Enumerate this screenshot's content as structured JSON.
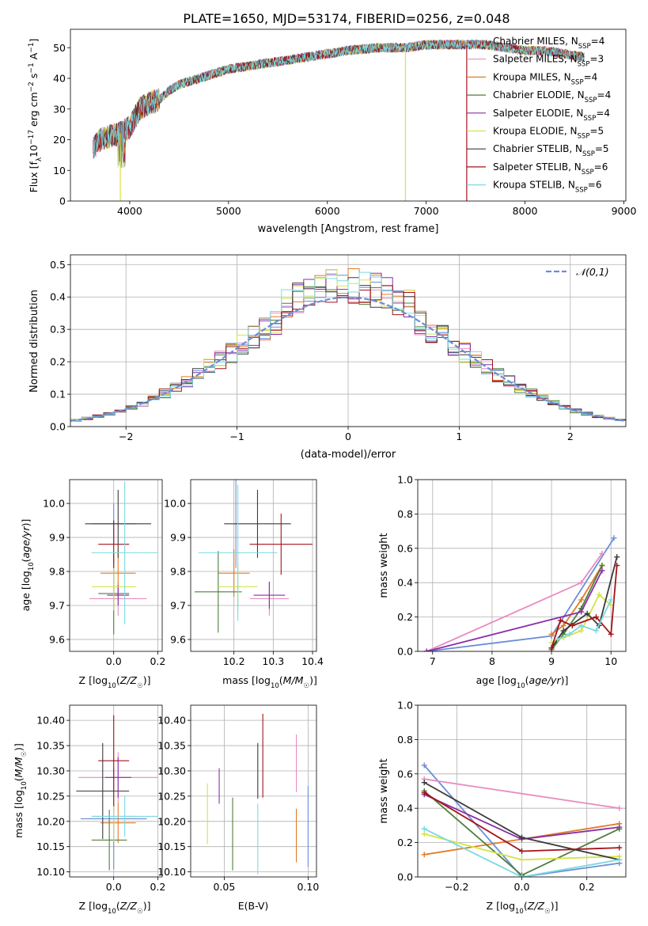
{
  "figure_title": "PLATE=1650, MJD=53174, FIBERID=0256, z=0.048",
  "colors": {
    "Chabrier MILES": "#6b8ed6",
    "Salpeter MILES": "#e98cc0",
    "Kroupa MILES": "#e07b27",
    "Chabrier ELODIE": "#4e7f3d",
    "Salpeter ELODIE": "#8a2ea8",
    "Kroupa ELODIE": "#d6e24a",
    "Chabrier STELIB": "#3b3b3b",
    "Salpeter STELIB": "#a3141b",
    "Kroupa STELIB": "#7ad9e0"
  },
  "chart_data": [
    {
      "id": "spectrum",
      "type": "line",
      "xlabel": "wavelength [Angstrom, rest frame]",
      "ylabel": "Flux [f_λ 10^-17 erg cm^-2 s^-1 A^-1]",
      "xlim": [
        3400,
        9020
      ],
      "ylim": [
        0,
        56
      ],
      "xticks": [
        4000,
        5000,
        6000,
        7000,
        8000,
        9000
      ],
      "yticks": [
        0,
        10,
        20,
        30,
        40,
        50
      ],
      "legend_position": "right",
      "legend": [
        {
          "model": "Chabrier MILES",
          "nssp": "4"
        },
        {
          "model": "Salpeter MILES",
          "nssp": "3"
        },
        {
          "model": "Kroupa MILES",
          "nssp": "4"
        },
        {
          "model": "Chabrier ELODIE",
          "nssp": "4"
        },
        {
          "model": "Salpeter ELODIE",
          "nssp": "4"
        },
        {
          "model": "Kroupa ELODIE",
          "nssp": "5"
        },
        {
          "model": "Chabrier STELIB",
          "nssp": "5"
        },
        {
          "model": "Salpeter STELIB",
          "nssp": "6"
        },
        {
          "model": "Kroupa STELIB",
          "nssp": "6"
        }
      ],
      "continuum": {
        "x": [
          3630,
          3700,
          3800,
          3900,
          4000,
          4100,
          4200,
          4300,
          4400,
          4500,
          4700,
          5000,
          5200,
          5400,
          5600,
          5800,
          6000,
          6200,
          6500,
          6800,
          7000,
          7200,
          7400,
          7600,
          7800,
          8000,
          8200,
          8400,
          8600
        ],
        "y": [
          17,
          20,
          21,
          22,
          24,
          30,
          32,
          33,
          36,
          38,
          40,
          43,
          44,
          45,
          46,
          47,
          48,
          49,
          50,
          50,
          51,
          51,
          51,
          51,
          50,
          49,
          49,
          48,
          47
        ]
      },
      "absorption_spikes": [
        {
          "x": 3905,
          "color_of": "Kroupa ELODIE"
        },
        {
          "x": 6790,
          "color_of": "Kroupa ELODIE"
        },
        {
          "x": 7410,
          "color_of": "Salpeter STELIB"
        }
      ]
    },
    {
      "id": "residuals",
      "type": "histogram",
      "xlabel": "(data-model)/error",
      "ylabel": "Normed distribution",
      "xlim": [
        -2.5,
        2.5
      ],
      "ylim": [
        0,
        0.53
      ],
      "xticks": [
        -2,
        -1,
        0,
        1,
        2
      ],
      "yticks": [
        0.0,
        0.1,
        0.2,
        0.3,
        0.4,
        0.5
      ],
      "bin_width": 0.1,
      "legend": [
        "𝒩(0,1)"
      ],
      "legend_position": "top-right",
      "grid": true
    },
    {
      "id": "z_age",
      "type": "errorbar",
      "xlabel": "Z [log10(Z/Z☉)]",
      "ylabel": "age [log10(age/yr)]",
      "xlim": [
        -0.2,
        0.22
      ],
      "ylim": [
        9.565,
        10.07
      ],
      "xticks": [
        0.0,
        0.2
      ],
      "yticks": [
        9.6,
        9.7,
        9.8,
        9.9,
        10.0
      ],
      "grid": true,
      "points": [
        {
          "model": "Chabrier MILES",
          "x": 0.0,
          "xerr": 0.1,
          "y": 9.94,
          "yerr": 0.06
        },
        {
          "model": "Salpeter MILES",
          "x": 0.02,
          "xerr": 0.13,
          "y": 9.72,
          "yerr": 0.05
        },
        {
          "model": "Kroupa MILES",
          "x": 0.02,
          "xerr": 0.08,
          "y": 9.795,
          "yerr": 0.07
        },
        {
          "model": "Chabrier ELODIE",
          "x": 0.0,
          "xerr": 0.07,
          "y": 9.735,
          "yerr": 0.12
        },
        {
          "model": "Salpeter ELODIE",
          "x": 0.02,
          "xerr": 0.05,
          "y": 9.73,
          "yerr": 0.03
        },
        {
          "model": "Kroupa ELODIE",
          "x": 0.0,
          "xerr": 0.1,
          "y": 9.755,
          "yerr": 0.07
        },
        {
          "model": "Chabrier STELIB",
          "x": 0.02,
          "xerr": 0.15,
          "y": 9.94,
          "yerr": 0.1
        },
        {
          "model": "Salpeter STELIB",
          "x": 0.0,
          "xerr": 0.07,
          "y": 9.88,
          "yerr": 0.07
        },
        {
          "model": "Kroupa STELIB",
          "x": 0.05,
          "xerr": 0.15,
          "y": 9.855,
          "yerr": 0.21
        }
      ]
    },
    {
      "id": "mass_age",
      "type": "errorbar",
      "xlabel": "mass [log10(M/M☉)]",
      "ylabel": "",
      "xlim": [
        10.09,
        10.41
      ],
      "ylim": [
        9.565,
        10.07
      ],
      "xticks": [
        10.2,
        10.3,
        10.4
      ],
      "yticks": [
        9.6,
        9.7,
        9.8,
        9.9,
        10.0
      ],
      "grid": true,
      "points": [
        {
          "model": "Chabrier MILES",
          "x": 10.205,
          "xerr": 0.005,
          "y": 9.94,
          "yerr": 0.13
        },
        {
          "model": "Salpeter MILES",
          "x": 10.29,
          "xerr": 0.05,
          "y": 9.72,
          "yerr": 0.05
        },
        {
          "model": "Kroupa MILES",
          "x": 10.2,
          "xerr": 0.04,
          "y": 9.795,
          "yerr": 0.07
        },
        {
          "model": "Chabrier ELODIE",
          "x": 10.16,
          "xerr": 0.06,
          "y": 9.74,
          "yerr": 0.12
        },
        {
          "model": "Salpeter ELODIE",
          "x": 10.29,
          "xerr": 0.04,
          "y": 9.73,
          "yerr": 0.04
        },
        {
          "model": "Kroupa ELODIE",
          "x": 10.21,
          "xerr": 0.05,
          "y": 9.755,
          "yerr": 0.07
        },
        {
          "model": "Chabrier STELIB",
          "x": 10.26,
          "xerr": 0.085,
          "y": 9.94,
          "yerr": 0.1
        },
        {
          "model": "Salpeter STELIB",
          "x": 10.32,
          "xerr": 0.08,
          "y": 9.88,
          "yerr": 0.09
        },
        {
          "model": "Kroupa STELIB",
          "x": 10.21,
          "xerr": 0.1,
          "y": 9.855,
          "yerr": 0.2
        }
      ]
    },
    {
      "id": "age_weights",
      "type": "line",
      "xlabel": "age [log10(age/yr)]",
      "ylabel": "mass weight",
      "xlim": [
        6.75,
        10.25
      ],
      "ylim": [
        0,
        1
      ],
      "xticks": [
        7,
        8,
        9,
        10
      ],
      "yticks": [
        0.0,
        0.2,
        0.4,
        0.6,
        0.8,
        1.0
      ],
      "grid": true,
      "series": [
        {
          "model": "Chabrier MILES",
          "x": [
            6.9,
            9.0,
            10.05
          ],
          "y": [
            0.0,
            0.09,
            0.66
          ]
        },
        {
          "model": "Salpeter MILES",
          "x": [
            6.9,
            9.5,
            9.85
          ],
          "y": [
            0.0,
            0.4,
            0.57
          ]
        },
        {
          "model": "Kroupa MILES",
          "x": [
            9.0,
            9.2,
            9.5,
            9.85
          ],
          "y": [
            0.1,
            0.15,
            0.3,
            0.5
          ]
        },
        {
          "model": "Chabrier ELODIE",
          "x": [
            9.0,
            9.2,
            9.5,
            9.85
          ],
          "y": [
            0.01,
            0.1,
            0.25,
            0.5
          ]
        },
        {
          "model": "Salpeter ELODIE",
          "x": [
            6.9,
            9.5,
            9.85
          ],
          "y": [
            0.0,
            0.23,
            0.47
          ]
        },
        {
          "model": "Kroupa ELODIE",
          "x": [
            9.0,
            9.2,
            9.5,
            9.8,
            10.0
          ],
          "y": [
            0.05,
            0.08,
            0.12,
            0.33,
            0.27
          ]
        },
        {
          "model": "Chabrier STELIB",
          "x": [
            9.0,
            9.2,
            9.6,
            9.8,
            10.1
          ],
          "y": [
            0.02,
            0.12,
            0.22,
            0.15,
            0.55
          ]
        },
        {
          "model": "Salpeter STELIB",
          "x": [
            9.0,
            9.15,
            9.35,
            9.75,
            10.0,
            10.1
          ],
          "y": [
            0.02,
            0.18,
            0.15,
            0.2,
            0.1,
            0.5
          ]
        },
        {
          "model": "Kroupa STELIB",
          "x": [
            9.1,
            9.3,
            9.5,
            9.75,
            10.0
          ],
          "y": [
            0.07,
            0.1,
            0.15,
            0.12,
            0.3
          ]
        }
      ]
    },
    {
      "id": "mass_z",
      "type": "errorbar",
      "xlabel": "Z [log10(Z/Z☉)]",
      "ylabel": "mass [log10(M/M☉)]",
      "xlim": [
        -0.2,
        0.22
      ],
      "ylim": [
        10.09,
        10.43
      ],
      "xticks": [
        0.0,
        0.2
      ],
      "yticks": [
        10.1,
        10.15,
        10.2,
        10.25,
        10.3,
        10.35,
        10.4
      ],
      "grid": true,
      "points": [
        {
          "model": "Chabrier MILES",
          "x": 0.0,
          "xerr": 0.15,
          "y": 10.205,
          "yerr": 0.1
        },
        {
          "model": "Salpeter MILES",
          "x": 0.02,
          "xerr": 0.18,
          "y": 10.287,
          "yerr": 0.05
        },
        {
          "model": "Kroupa MILES",
          "x": 0.02,
          "xerr": 0.08,
          "y": 10.197,
          "yerr": 0.04
        },
        {
          "model": "Chabrier ELODIE",
          "x": -0.02,
          "xerr": 0.08,
          "y": 10.163,
          "yerr": 0.06
        },
        {
          "model": "Salpeter ELODIE",
          "x": 0.02,
          "xerr": 0.06,
          "y": 10.287,
          "yerr": 0.04
        },
        {
          "model": "Kroupa ELODIE",
          "x": 0.0,
          "xerr": 0.1,
          "y": 10.21,
          "yerr": 0.05
        },
        {
          "model": "Chabrier STELIB",
          "x": -0.05,
          "xerr": 0.12,
          "y": 10.26,
          "yerr": 0.095
        },
        {
          "model": "Salpeter STELIB",
          "x": 0.0,
          "xerr": 0.07,
          "y": 10.32,
          "yerr": 0.09
        },
        {
          "model": "Kroupa STELIB",
          "x": 0.05,
          "xerr": 0.15,
          "y": 10.21,
          "yerr": 0.04
        }
      ]
    },
    {
      "id": "mass_ebv",
      "type": "errorbar",
      "xlabel": "E(B-V)",
      "ylabel": "",
      "xlim": [
        0.03,
        0.105
      ],
      "ylim": [
        10.09,
        10.43
      ],
      "xticks": [
        0.05,
        0.1
      ],
      "yticks": [
        10.1,
        10.15,
        10.2,
        10.25,
        10.3,
        10.35,
        10.4
      ],
      "grid": true,
      "points": [
        {
          "model": "Chabrier MILES",
          "x": 0.1,
          "xerr": 0.0,
          "y": 10.19,
          "yerr": 0.08
        },
        {
          "model": "Salpeter MILES",
          "x": 0.093,
          "xerr": 0.0,
          "y": 10.315,
          "yerr": 0.057
        },
        {
          "model": "Kroupa MILES",
          "x": 0.093,
          "xerr": 0.0,
          "y": 10.172,
          "yerr": 0.053
        },
        {
          "model": "Chabrier ELODIE",
          "x": 0.055,
          "xerr": 0.0,
          "y": 10.175,
          "yerr": 0.072
        },
        {
          "model": "Salpeter ELODIE",
          "x": 0.047,
          "xerr": 0.0,
          "y": 10.27,
          "yerr": 0.035
        },
        {
          "model": "Kroupa ELODIE",
          "x": 0.04,
          "xerr": 0.0,
          "y": 10.215,
          "yerr": 0.06
        },
        {
          "model": "Chabrier STELIB",
          "x": 0.07,
          "xerr": 0.0,
          "y": 10.3,
          "yerr": 0.055
        },
        {
          "model": "Salpeter STELIB",
          "x": 0.073,
          "xerr": 0.0,
          "y": 10.33,
          "yerr": 0.083
        },
        {
          "model": "Kroupa STELIB",
          "x": 0.07,
          "xerr": 0.0,
          "y": 10.165,
          "yerr": 0.07
        }
      ]
    },
    {
      "id": "z_weights",
      "type": "line",
      "xlabel": "Z [log10(Z/Z☉)]",
      "ylabel": "mass weight",
      "xlim": [
        -0.32,
        0.32
      ],
      "ylim": [
        0,
        1
      ],
      "xticks": [
        -0.2,
        0.0,
        0.2
      ],
      "yticks": [
        0.0,
        0.2,
        0.4,
        0.6,
        0.8,
        1.0
      ],
      "grid": true,
      "series": [
        {
          "model": "Chabrier MILES",
          "x": [
            -0.3,
            0.0,
            0.3
          ],
          "y": [
            0.65,
            0.0,
            0.08
          ]
        },
        {
          "model": "Salpeter MILES",
          "x": [
            -0.3,
            0.3
          ],
          "y": [
            0.57,
            0.4
          ]
        },
        {
          "model": "Kroupa MILES",
          "x": [
            -0.3,
            0.3
          ],
          "y": [
            0.13,
            0.31
          ]
        },
        {
          "model": "Chabrier ELODIE",
          "x": [
            -0.3,
            0.0,
            0.3
          ],
          "y": [
            0.5,
            0.01,
            0.28
          ]
        },
        {
          "model": "Salpeter ELODIE",
          "x": [
            -0.3,
            0.0,
            0.3
          ],
          "y": [
            0.48,
            0.22,
            0.29
          ]
        },
        {
          "model": "Kroupa ELODIE",
          "x": [
            -0.3,
            0.0,
            0.3
          ],
          "y": [
            0.25,
            0.1,
            0.12
          ]
        },
        {
          "model": "Chabrier STELIB",
          "x": [
            -0.3,
            0.0,
            0.3
          ],
          "y": [
            0.55,
            0.23,
            0.1
          ]
        },
        {
          "model": "Salpeter STELIB",
          "x": [
            -0.3,
            0.0,
            0.3
          ],
          "y": [
            0.49,
            0.15,
            0.17
          ]
        },
        {
          "model": "Kroupa STELIB",
          "x": [
            -0.3,
            0.0,
            0.3
          ],
          "y": [
            0.28,
            0.0,
            0.1
          ]
        }
      ]
    }
  ]
}
